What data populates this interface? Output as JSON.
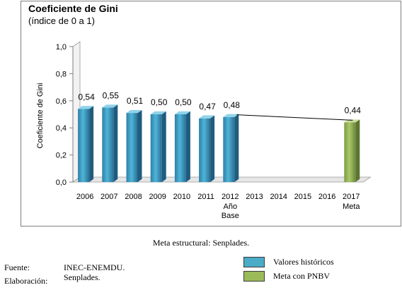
{
  "header": {
    "title": "Coeficiente de Gini",
    "subtitle": "(índice de 0 a 1)"
  },
  "chart_data": {
    "type": "bar",
    "ylabel": "Coeficiente de Gini",
    "ylim": [
      0,
      1.0
    ],
    "yticks": [
      "0,0",
      "0,2",
      "0,4",
      "0,6",
      "0,8",
      "1,0"
    ],
    "categories": [
      "2006",
      "2007",
      "2008",
      "2009",
      "2010",
      "2011",
      "2012",
      "2013",
      "2014",
      "2015",
      "2016",
      "2017"
    ],
    "category_sublabels": {
      "2012": [
        "Año",
        "Base"
      ],
      "2017": [
        "Meta"
      ]
    },
    "series": [
      {
        "name": "Valores históricos",
        "color": "#4aacc6",
        "values": [
          0.54,
          0.55,
          0.51,
          0.5,
          0.5,
          0.47,
          0.48,
          null,
          null,
          null,
          null,
          null
        ],
        "labels": [
          "0,54",
          "0,55",
          "0,51",
          "0,50",
          "0,50",
          "0,47",
          "0,48",
          "",
          "",
          "",
          "",
          ""
        ]
      },
      {
        "name": "Meta con PNBV",
        "color": "#9bbb59",
        "values": [
          null,
          null,
          null,
          null,
          null,
          null,
          null,
          null,
          null,
          null,
          null,
          0.44
        ],
        "labels": [
          "",
          "",
          "",
          "",
          "",
          "",
          "",
          "",
          "",
          "",
          "",
          "0,44"
        ]
      }
    ],
    "trend_line": {
      "from": "2012",
      "to": "2017",
      "from_value": 0.48,
      "to_value": 0.44
    },
    "grid": false,
    "legend_position": "bottom-right"
  },
  "caption": "Meta estructural: Senplades.",
  "source": {
    "fuente_label": "Fuente:",
    "fuente_value": "INEC-ENEMDU.",
    "elaboracion_label": "Elaboración:",
    "elaboracion_value": "Senplades."
  },
  "legend": {
    "hist_label": "Valores históricos",
    "hist_color": "#4aacc6",
    "meta_label": "Meta con PNBV",
    "meta_color": "#9bbb59"
  }
}
